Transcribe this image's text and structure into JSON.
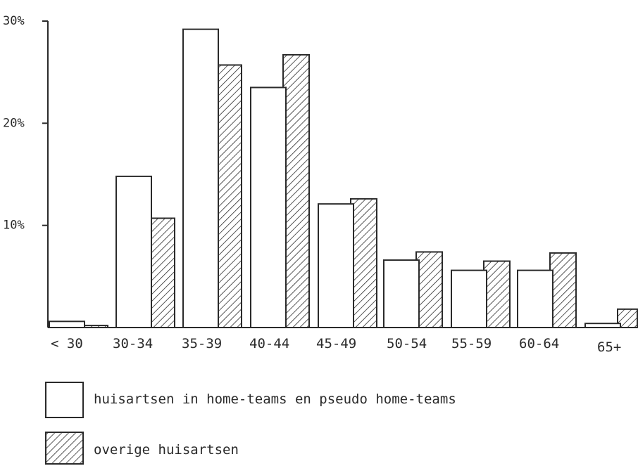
{
  "chart_data": {
    "type": "bar",
    "categories": [
      "< 30",
      "30-34",
      "35-39",
      "40-44",
      "45-49",
      "50-54",
      "55-59",
      "60-64",
      "65+"
    ],
    "series": [
      {
        "name": "huisartsen in home-teams en pseudo home-teams",
        "values": [
          0.6,
          14.8,
          29.2,
          23.5,
          12.1,
          6.6,
          5.6,
          5.6,
          0.4
        ],
        "pattern": "white"
      },
      {
        "name": "overige huisartsen",
        "values": [
          0.2,
          10.7,
          25.7,
          26.7,
          12.6,
          7.4,
          6.5,
          7.3,
          1.8
        ],
        "pattern": "hatched"
      }
    ],
    "yticks": [
      {
        "value": 10,
        "label": "10%"
      },
      {
        "value": 20,
        "label": "20%"
      },
      {
        "value": 30,
        "label": "30%"
      }
    ],
    "ylim": [
      0,
      30
    ],
    "xlabel": "",
    "ylabel": "",
    "grid": false,
    "legend_position": "bottom-left"
  },
  "colors": {
    "ink": "#2a2a2a",
    "background": "#ffffff"
  }
}
